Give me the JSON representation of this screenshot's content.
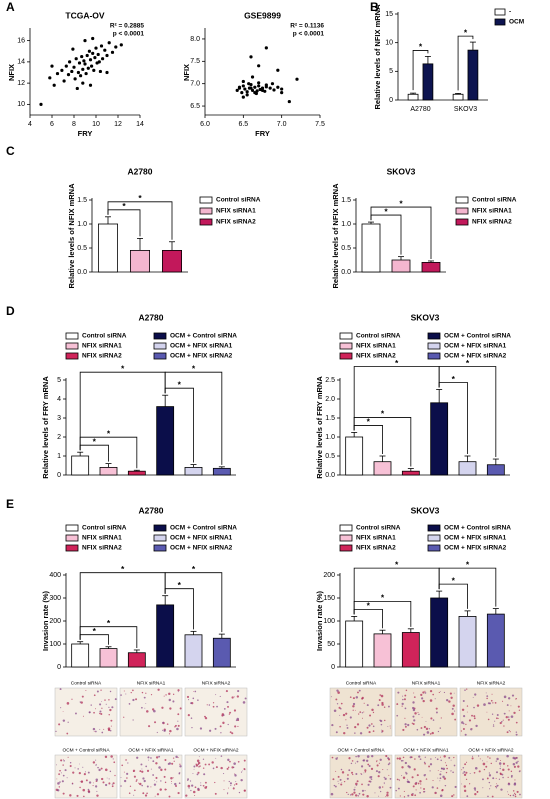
{
  "figure": {
    "panels": [
      "A",
      "B",
      "C",
      "D",
      "E"
    ]
  },
  "chart_data": [
    {
      "type": "scatter",
      "title": "TCGA-OV",
      "x_label": "FRY",
      "y_label": "NFIX",
      "annotations": [
        "R² = 0.2885",
        "p < 0.0001"
      ],
      "color": "#000000",
      "x": [
        5.0,
        5.8,
        6.2,
        6.5,
        6.9,
        7.1,
        7.3,
        7.5,
        7.6,
        7.8,
        8.0,
        8.1,
        8.2,
        8.4,
        8.5,
        8.6,
        8.7,
        8.8,
        8.9,
        9.0,
        9.1,
        9.2,
        9.3,
        9.4,
        9.5,
        9.6,
        9.7,
        9.8,
        9.9,
        10.0,
        10.1,
        10.2,
        10.3,
        10.5,
        10.6,
        10.8,
        11.0,
        11.2,
        11.5,
        11.8,
        12.3,
        8.3,
        9.0,
        9.5,
        10.4,
        7.9,
        8.8,
        9.7,
        6.0,
        11.0
      ],
      "y": [
        10.0,
        12.5,
        11.8,
        12.9,
        13.2,
        12.2,
        13.6,
        12.8,
        14.0,
        13.1,
        13.5,
        12.4,
        14.3,
        13.0,
        13.9,
        12.7,
        14.5,
        13.3,
        14.1,
        13.8,
        12.9,
        14.6,
        13.4,
        15.0,
        14.2,
        13.6,
        14.8,
        13.2,
        14.4,
        15.3,
        13.9,
        14.7,
        14.0,
        15.5,
        14.3,
        15.1,
        14.6,
        15.8,
        14.9,
        15.4,
        15.6,
        11.5,
        16.0,
        11.8,
        13.1,
        15.2,
        12.0,
        16.2,
        13.6,
        13.0
      ],
      "xlim": [
        4,
        14
      ],
      "xticks": [
        4,
        6,
        8,
        10,
        12,
        14
      ],
      "ylim": [
        9,
        17
      ],
      "yticks": [
        10,
        12,
        14,
        16
      ]
    },
    {
      "type": "scatter",
      "title": "GSE9899",
      "x_label": "FRY",
      "y_label": "NFIX",
      "annotations": [
        "R² = 0.1136",
        "p < 0.0001"
      ],
      "color": "#000000",
      "x": [
        6.42,
        6.45,
        6.48,
        6.5,
        6.52,
        6.55,
        6.57,
        6.6,
        6.62,
        6.65,
        6.67,
        6.7,
        6.72,
        6.75,
        6.78,
        6.8,
        6.85,
        6.9,
        6.95,
        7.0,
        6.5,
        6.55,
        6.6,
        6.65,
        6.7,
        6.75,
        6.8,
        6.58,
        6.68,
        6.88,
        6.6,
        6.7,
        6.95,
        7.1,
        7.2,
        6.5,
        6.62,
        6.8,
        7.0,
        6.45
      ],
      "y": [
        6.85,
        6.9,
        6.8,
        6.95,
        6.88,
        6.82,
        7.0,
        6.9,
        6.85,
        6.92,
        6.78,
        6.95,
        6.87,
        6.9,
        6.83,
        6.97,
        6.9,
        6.86,
        6.92,
        6.88,
        7.05,
        6.75,
        6.98,
        6.8,
        7.02,
        6.85,
        6.93,
        6.9,
        6.84,
        7.0,
        7.6,
        7.4,
        7.3,
        6.6,
        7.1,
        6.7,
        7.15,
        7.8,
        6.8,
        6.92
      ],
      "xlim": [
        6,
        7.5
      ],
      "xticks": [
        {
          "value": 6,
          "label": "6.0"
        },
        6.5,
        {
          "value": 7,
          "label": "7.0"
        },
        7.5
      ],
      "ylim": [
        6.3,
        8.2
      ],
      "yticks": [
        6.5,
        {
          "value": 7,
          "label": "7.0"
        },
        7.5,
        {
          "value": 8,
          "label": "8.0"
        }
      ]
    },
    {
      "type": "grouped_bar",
      "y_label": "Relative levels of NFIX mRNA",
      "categories": [
        "A2780",
        "SKOV3"
      ],
      "series": [
        {
          "name": "-",
          "color": "#ffffff",
          "values": [
            1,
            1
          ],
          "errors": [
            0.2,
            0.15
          ]
        },
        {
          "name": "OCM",
          "color": "#0d1450",
          "values": [
            6.3,
            8.7
          ],
          "errors": [
            1.3,
            1.4
          ]
        }
      ],
      "significance": [
        "*",
        "*"
      ],
      "ylim": [
        0,
        15
      ],
      "yticks": [
        0,
        5,
        10,
        15
      ],
      "legend": "right"
    },
    {
      "type": "bar",
      "title": "A2780",
      "y_label": "Relative levels of NFIX mRNA",
      "categories": [
        "Control siRNA",
        "NFIX siRNA1",
        "NFIX siRNA2"
      ],
      "values": [
        1,
        0.45,
        0.45
      ],
      "errors": [
        0.15,
        0.25,
        0.18
      ],
      "colors": [
        "#ffffff",
        "#f4b6cf",
        "#c2185b"
      ],
      "significance": [
        "*",
        "*"
      ],
      "ylim": [
        0,
        1.5
      ],
      "yticks": [
        {
          "value": 0,
          "label": "0.0"
        },
        0.5,
        {
          "value": 1,
          "label": "1.0"
        },
        1.5
      ],
      "legend": "right"
    },
    {
      "type": "bar",
      "title": "SKOV3",
      "y_label": "Relative levels of NFIX mRNA",
      "categories": [
        "Control siRNA",
        "NFIX siRNA1",
        "NFIX siRNA2"
      ],
      "values": [
        1,
        0.25,
        0.2
      ],
      "errors": [
        0.04,
        0.07,
        0.03
      ],
      "colors": [
        "#ffffff",
        "#f4b6cf",
        "#c2185b"
      ],
      "significance": [
        "*",
        "*"
      ],
      "ylim": [
        0,
        1.5
      ],
      "yticks": [
        {
          "value": 0,
          "label": "0.0"
        },
        0.5,
        {
          "value": 1,
          "label": "1.0"
        },
        1.5
      ],
      "legend": "right"
    },
    {
      "type": "bar",
      "title": "A2780",
      "y_label": "Relative levels of FRY mRNA",
      "categories": [
        "Control siRNA",
        "NFIX siRNA1",
        "NFIX siRNA2",
        "OCM + Control siRNA",
        "OCM + NFIX siRNA1",
        "OCM + NFIX siRNA2"
      ],
      "values": [
        1,
        0.4,
        0.2,
        3.6,
        0.4,
        0.35
      ],
      "errors": [
        0.2,
        0.2,
        0.05,
        0.6,
        0.15,
        0.08
      ],
      "colors": [
        "#ffffff",
        "#f7c1d6",
        "#d0245a",
        "#0b0e4a",
        "#d4d4ee",
        "#5a5ab0"
      ],
      "significance": [
        "*",
        "*",
        "*",
        "*",
        "*"
      ],
      "ylim": [
        0,
        5
      ],
      "yticks": [
        0,
        1,
        2,
        3,
        4,
        5
      ],
      "legend": "top"
    },
    {
      "type": "bar",
      "title": "SKOV3",
      "y_label": "Relative levels of FRY mRNA",
      "categories": [
        "Control siRNA",
        "NFIX siRNA1",
        "NFIX siRNA2",
        "OCM + Control siRNA",
        "OCM + NFIX siRNA1",
        "OCM + NFIX siRNA2"
      ],
      "values": [
        1,
        0.35,
        0.1,
        1.9,
        0.35,
        0.27
      ],
      "errors": [
        0.12,
        0.15,
        0.07,
        0.35,
        0.15,
        0.15
      ],
      "colors": [
        "#ffffff",
        "#f7c1d6",
        "#d0245a",
        "#0b0e4a",
        "#d4d4ee",
        "#5a5ab0"
      ],
      "significance": [
        "*",
        "*",
        "*",
        "*",
        "*"
      ],
      "ylim": [
        0,
        2.5
      ],
      "yticks": [
        {
          "value": 0,
          "label": "0.0"
        },
        0.5,
        {
          "value": 1,
          "label": "1.0"
        },
        1.5,
        {
          "value": 2,
          "label": "2.0"
        },
        2.5
      ],
      "legend": "top"
    },
    {
      "type": "bar",
      "title": "A2780",
      "y_label": "Invasion rate (%)",
      "categories": [
        "Control siRNA",
        "NFIX siRNA1",
        "NFIX siRNA2",
        "OCM + Control siRNA",
        "OCM + NFIX siRNA1",
        "OCM + NFIX siRNA2"
      ],
      "values": [
        100,
        80,
        62,
        270,
        140,
        125
      ],
      "errors": [
        10,
        8,
        12,
        40,
        15,
        18
      ],
      "colors": [
        "#ffffff",
        "#f7c1d6",
        "#d0245a",
        "#0b0e4a",
        "#d4d4ee",
        "#5a5ab0"
      ],
      "significance": [
        "*",
        "*",
        "*",
        "*",
        "*"
      ],
      "ylim": [
        0,
        400
      ],
      "yticks": [
        0,
        100,
        200,
        300,
        400
      ],
      "legend": "top"
    },
    {
      "type": "bar",
      "title": "SKOV3",
      "y_label": "Invasion rate (%)",
      "categories": [
        "Control siRNA",
        "NFIX siRNA1",
        "NFIX siRNA2",
        "OCM + Control siRNA",
        "OCM + NFIX siRNA1",
        "OCM + NFIX siRNA2"
      ],
      "values": [
        100,
        72,
        75,
        150,
        110,
        115
      ],
      "errors": [
        10,
        8,
        8,
        15,
        12,
        12
      ],
      "colors": [
        "#ffffff",
        "#f7c1d6",
        "#d0245a",
        "#0b0e4a",
        "#d4d4ee",
        "#5a5ab0"
      ],
      "significance": [
        "*",
        "*",
        "*",
        "*",
        "*"
      ],
      "ylim": [
        0,
        200
      ],
      "yticks": [
        0,
        50,
        100,
        150,
        200
      ],
      "legend": "top"
    }
  ],
  "micrographs": [
    [
      "Control siRNA",
      "NFIX siRNA1",
      "NFIX siRNA2",
      "OCM + Control siRNA",
      "OCM + NFIX siRNA1",
      "OCM + NFIX siRNA2"
    ],
    [
      "Control siRNA",
      "NFIX siRNA1",
      "NFIX siRNA2",
      "OCM + Control siRNA",
      "OCM + NFIX siRNA1",
      "OCM + NFIX siRNA2"
    ]
  ]
}
